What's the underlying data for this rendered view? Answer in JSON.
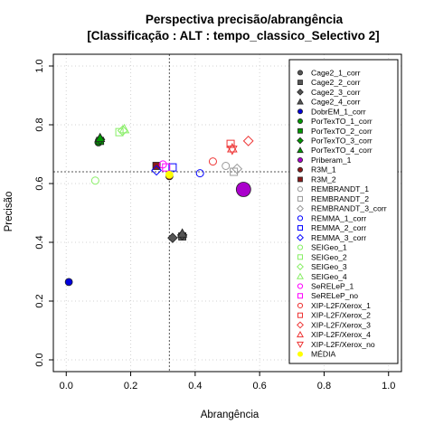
{
  "chart_data": {
    "type": "scatter",
    "title": "Perspectiva precisão/abrangência",
    "subtitle": "[Classificação : ALT : tempo_classico_Selectivo 2]",
    "xlabel": "Abrangência",
    "ylabel": "Precisão",
    "xlim": [
      -0.04,
      1.04
    ],
    "ylim": [
      -0.04,
      1.04
    ],
    "xticks": [
      0.0,
      0.2,
      0.4,
      0.6,
      0.8,
      1.0
    ],
    "xtick_labels": [
      "0.0",
      "0.2",
      "0.4",
      "0.6",
      "0.8",
      "1.0"
    ],
    "yticks": [
      0.0,
      0.2,
      0.4,
      0.6,
      0.8,
      1.0
    ],
    "ytick_labels": [
      "0.0",
      "0.2",
      "0.4",
      "0.6",
      "0.8",
      "1.0"
    ],
    "grid": true,
    "legend_position": "top-right",
    "reference_lines": {
      "x": 0.32,
      "y": 0.64
    },
    "series": [
      {
        "name": "Cage2_1_corr",
        "shape": "circle",
        "color": "#555555",
        "filled": true,
        "points": [
          [
            0.36,
            0.42
          ]
        ]
      },
      {
        "name": "Cage2_2_corr",
        "shape": "square",
        "color": "#555555",
        "filled": true,
        "points": [
          [
            0.36,
            0.42
          ]
        ]
      },
      {
        "name": "Cage2_3_corr",
        "shape": "diamond",
        "color": "#555555",
        "filled": true,
        "points": [
          [
            0.33,
            0.415
          ],
          [
            0.36,
            0.425
          ]
        ]
      },
      {
        "name": "Cage2_4_corr",
        "shape": "triangle",
        "color": "#555555",
        "filled": true,
        "points": [
          [
            0.36,
            0.43
          ]
        ]
      },
      {
        "name": "DobrEM_1_corr",
        "shape": "circle",
        "color": "#0000dd",
        "filled": true,
        "points": [
          [
            0.008,
            0.265
          ]
        ]
      },
      {
        "name": "PorTexTO_1_corr",
        "shape": "circle",
        "color": "#009900",
        "filled": true,
        "points": [
          [
            0.1,
            0.74
          ]
        ]
      },
      {
        "name": "PorTexTO_2_corr",
        "shape": "square",
        "color": "#009900",
        "filled": true,
        "points": [
          [
            0.105,
            0.745
          ]
        ]
      },
      {
        "name": "PorTexTO_3_corr",
        "shape": "diamond",
        "color": "#009900",
        "filled": true,
        "points": [
          [
            0.105,
            0.75
          ]
        ]
      },
      {
        "name": "PorTexTO_4_corr",
        "shape": "triangle",
        "color": "#009900",
        "filled": true,
        "points": [
          [
            0.105,
            0.755
          ]
        ]
      },
      {
        "name": "Priberam_1",
        "shape": "circle",
        "color": "#aa00cc",
        "filled": true,
        "big": true,
        "points": [
          [
            0.55,
            0.58
          ]
        ]
      },
      {
        "name": "R3M_1",
        "shape": "circle",
        "color": "#8b1a1a",
        "filled": true,
        "points": [
          [
            0.32,
            0.625
          ]
        ]
      },
      {
        "name": "R3M_2",
        "shape": "square",
        "color": "#8b1a1a",
        "filled": true,
        "points": [
          [
            0.28,
            0.66
          ]
        ]
      },
      {
        "name": "REMBRANDT_1",
        "shape": "circle",
        "color": "#999999",
        "filled": false,
        "points": [
          [
            0.495,
            0.66
          ]
        ]
      },
      {
        "name": "REMBRANDT_2",
        "shape": "square",
        "color": "#999999",
        "filled": false,
        "points": [
          [
            0.52,
            0.64
          ]
        ]
      },
      {
        "name": "REMBRANDT_3_corr",
        "shape": "diamond",
        "color": "#999999",
        "filled": false,
        "points": [
          [
            0.53,
            0.65
          ]
        ]
      },
      {
        "name": "REMMA_1_corr",
        "shape": "circle",
        "color": "#0000ff",
        "filled": false,
        "points": [
          [
            0.415,
            0.635
          ]
        ]
      },
      {
        "name": "REMMA_2_corr",
        "shape": "square",
        "color": "#0000ff",
        "filled": false,
        "points": [
          [
            0.33,
            0.655
          ]
        ]
      },
      {
        "name": "REMMA_3_corr",
        "shape": "diamond",
        "color": "#0000ff",
        "filled": false,
        "points": [
          [
            0.28,
            0.645
          ]
        ]
      },
      {
        "name": "SEIGeo_1",
        "shape": "circle",
        "color": "#88ee66",
        "filled": false,
        "points": [
          [
            0.09,
            0.61
          ]
        ]
      },
      {
        "name": "SEIGeo_2",
        "shape": "square",
        "color": "#88ee66",
        "filled": false,
        "points": [
          [
            0.165,
            0.775
          ]
        ]
      },
      {
        "name": "SEIGeo_3",
        "shape": "diamond",
        "color": "#88ee66",
        "filled": false,
        "points": [
          [
            0.175,
            0.78
          ]
        ]
      },
      {
        "name": "SEIGeo_4",
        "shape": "triangle",
        "color": "#88ee66",
        "filled": false,
        "points": [
          [
            0.18,
            0.785
          ]
        ]
      },
      {
        "name": "SeRELeP_1",
        "shape": "circle",
        "color": "#ff00ff",
        "filled": false,
        "points": [
          [
            0.3,
            0.665
          ]
        ]
      },
      {
        "name": "SeRELeP_no",
        "shape": "square",
        "color": "#ff00ff",
        "filled": false,
        "points": [
          [
            0.31,
            0.655
          ]
        ]
      },
      {
        "name": "XIP-L2F/Xerox_1",
        "shape": "circle",
        "color": "#ee3333",
        "filled": false,
        "points": [
          [
            0.455,
            0.675
          ]
        ]
      },
      {
        "name": "XIP-L2F/Xerox_2",
        "shape": "square",
        "color": "#ee3333",
        "filled": false,
        "points": [
          [
            0.51,
            0.735
          ]
        ]
      },
      {
        "name": "XIP-L2F/Xerox_3",
        "shape": "diamond",
        "color": "#ee3333",
        "filled": false,
        "points": [
          [
            0.565,
            0.745
          ]
        ]
      },
      {
        "name": "XIP-L2F/Xerox_4",
        "shape": "triangle",
        "color": "#ee3333",
        "filled": false,
        "points": [
          [
            0.515,
            0.72
          ]
        ]
      },
      {
        "name": "XIP-L2F/Xerox_no",
        "shape": "triangle-down",
        "color": "#ee3333",
        "filled": false,
        "points": [
          [
            0.515,
            0.715
          ]
        ]
      },
      {
        "name": "MÉDIA",
        "shape": "circle",
        "color": "#ffff00",
        "filled": true,
        "points": [
          [
            0.32,
            0.63
          ]
        ]
      }
    ]
  }
}
